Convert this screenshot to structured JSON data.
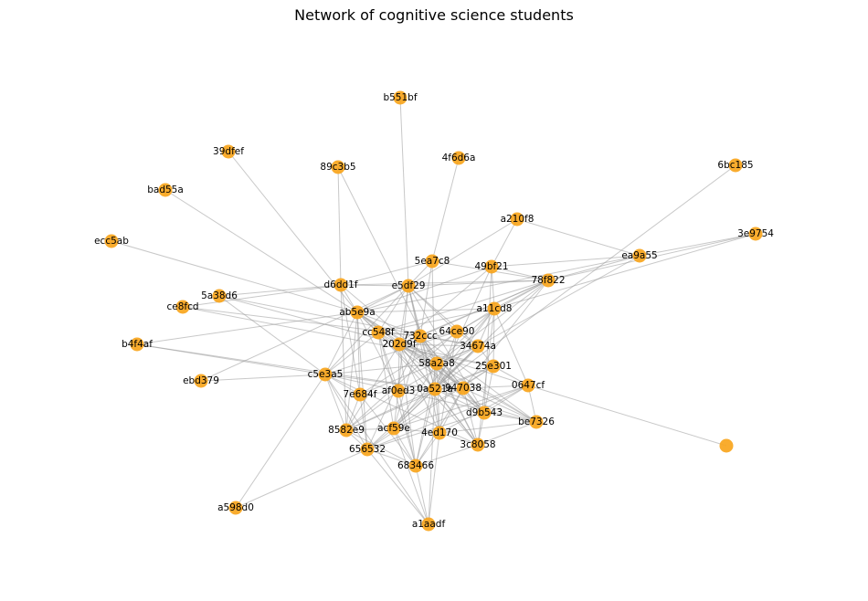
{
  "title": "Network of cognitive science students",
  "colors": {
    "node": "#f8a51c",
    "edge": "#9a9a9a",
    "label": "#000000"
  },
  "nodes": [
    {
      "id": "b551bf",
      "label": "b551bf"
    },
    {
      "id": "39dfef",
      "label": "39dfef"
    },
    {
      "id": "4f6d6a",
      "label": "4f6d6a"
    },
    {
      "id": "89c3b5",
      "label": "89c3b5"
    },
    {
      "id": "6bc185",
      "label": "6bc185"
    },
    {
      "id": "bad55a",
      "label": "bad55a"
    },
    {
      "id": "a210f8",
      "label": "a210f8"
    },
    {
      "id": "3e9754",
      "label": "3e9754"
    },
    {
      "id": "ecc5ab",
      "label": "ecc5ab"
    },
    {
      "id": "ea9a55",
      "label": "ea9a55"
    },
    {
      "id": "5ea7c8",
      "label": "5ea7c8"
    },
    {
      "id": "49bf21",
      "label": "49bf21"
    },
    {
      "id": "78f822",
      "label": "78f822"
    },
    {
      "id": "d6dd1f",
      "label": "d6dd1f"
    },
    {
      "id": "e5df29",
      "label": "e5df29"
    },
    {
      "id": "5a38d6",
      "label": "5a38d6"
    },
    {
      "id": "ce8fcd",
      "label": "ce8fcd"
    },
    {
      "id": "a11cd8",
      "label": "a11cd8"
    },
    {
      "id": "ab5e9a",
      "label": "ab5e9a"
    },
    {
      "id": "cc548f",
      "label": "cc548f"
    },
    {
      "id": "64ce90",
      "label": "64ce90"
    },
    {
      "id": "732ccc",
      "label": "732ccc"
    },
    {
      "id": "b4f4af",
      "label": "b4f4af"
    },
    {
      "id": "202d9f",
      "label": "202d9f"
    },
    {
      "id": "34674a",
      "label": "34674a"
    },
    {
      "id": "58a2a8",
      "label": "58a2a8"
    },
    {
      "id": "25e301",
      "label": "25e301"
    },
    {
      "id": "c5e3a5",
      "label": "c5e3a5"
    },
    {
      "id": "ebd379",
      "label": "ebd379"
    },
    {
      "id": "0647cf",
      "label": "0647cf"
    },
    {
      "id": "7e684f",
      "label": "7e684f"
    },
    {
      "id": "af0ed3",
      "label": "af0ed3"
    },
    {
      "id": "0a521a",
      "label": "0a521a"
    },
    {
      "id": "947038",
      "label": "947038"
    },
    {
      "id": "d9b543",
      "label": "d9b543"
    },
    {
      "id": "be7326",
      "label": "be7326"
    },
    {
      "id": "8582e9",
      "label": "8582e9"
    },
    {
      "id": "acf59e",
      "label": "acf59e"
    },
    {
      "id": "4ed170",
      "label": "4ed170"
    },
    {
      "id": "3c8058",
      "label": "3c8058"
    },
    {
      "id": "656532",
      "label": "656532"
    },
    {
      "id": "683466",
      "label": "683466"
    },
    {
      "id": "a598d0",
      "label": "a598d0"
    },
    {
      "id": "a1aadf",
      "label": "a1aadf"
    },
    {
      "id": "lone",
      "label": ""
    }
  ],
  "edges": [
    [
      "b551bf",
      "e5df29"
    ],
    [
      "39dfef",
      "ab5e9a"
    ],
    [
      "4f6d6a",
      "5ea7c8"
    ],
    [
      "89c3b5",
      "d6dd1f"
    ],
    [
      "89c3b5",
      "58a2a8"
    ],
    [
      "bad55a",
      "ab5e9a"
    ],
    [
      "ecc5ab",
      "ab5e9a"
    ],
    [
      "6bc185",
      "0a521a"
    ],
    [
      "a210f8",
      "ea9a55"
    ],
    [
      "a210f8",
      "e5df29"
    ],
    [
      "a210f8",
      "49bf21"
    ],
    [
      "3e9754",
      "ea9a55"
    ],
    [
      "3e9754",
      "78f822"
    ],
    [
      "3e9754",
      "a11cd8"
    ],
    [
      "ea9a55",
      "78f822"
    ],
    [
      "ea9a55",
      "ab5e9a"
    ],
    [
      "ea9a55",
      "34674a"
    ],
    [
      "ea9a55",
      "49bf21"
    ],
    [
      "5ea7c8",
      "e5df29"
    ],
    [
      "5ea7c8",
      "78f822"
    ],
    [
      "5ea7c8",
      "d6dd1f"
    ],
    [
      "5ea7c8",
      "732ccc"
    ],
    [
      "5ea7c8",
      "0a521a"
    ],
    [
      "49bf21",
      "78f822"
    ],
    [
      "49bf21",
      "202d9f"
    ],
    [
      "49bf21",
      "a11cd8"
    ],
    [
      "49bf21",
      "0a521a"
    ],
    [
      "49bf21",
      "d9b543"
    ],
    [
      "49bf21",
      "ab5e9a"
    ],
    [
      "78f822",
      "d6dd1f"
    ],
    [
      "78f822",
      "e5df29"
    ],
    [
      "78f822",
      "a11cd8"
    ],
    [
      "78f822",
      "202d9f"
    ],
    [
      "78f822",
      "58a2a8"
    ],
    [
      "78f822",
      "0a521a"
    ],
    [
      "78f822",
      "732ccc"
    ],
    [
      "78f822",
      "947038"
    ],
    [
      "78f822",
      "64ce90"
    ],
    [
      "78f822",
      "cc548f"
    ],
    [
      "d6dd1f",
      "e5df29"
    ],
    [
      "d6dd1f",
      "ab5e9a"
    ],
    [
      "d6dd1f",
      "5a38d6"
    ],
    [
      "d6dd1f",
      "ce8fcd"
    ],
    [
      "d6dd1f",
      "7e684f"
    ],
    [
      "d6dd1f",
      "947038"
    ],
    [
      "d6dd1f",
      "8582e9"
    ],
    [
      "e5df29",
      "ab5e9a"
    ],
    [
      "e5df29",
      "cc548f"
    ],
    [
      "e5df29",
      "732ccc"
    ],
    [
      "e5df29",
      "64ce90"
    ],
    [
      "e5df29",
      "34674a"
    ],
    [
      "e5df29",
      "202d9f"
    ],
    [
      "e5df29",
      "af0ed3"
    ],
    [
      "e5df29",
      "0a521a"
    ],
    [
      "e5df29",
      "4ed170"
    ],
    [
      "e5df29",
      "ebd379"
    ],
    [
      "e5df29",
      "c5e3a5"
    ],
    [
      "e5df29",
      "d9b543"
    ],
    [
      "5a38d6",
      "c5e3a5"
    ],
    [
      "5a38d6",
      "34674a"
    ],
    [
      "5a38d6",
      "202d9f"
    ],
    [
      "ce8fcd",
      "25e301"
    ],
    [
      "ce8fcd",
      "732ccc"
    ],
    [
      "a11cd8",
      "ab5e9a"
    ],
    [
      "a11cd8",
      "cc548f"
    ],
    [
      "a11cd8",
      "34674a"
    ],
    [
      "a11cd8",
      "58a2a8"
    ],
    [
      "a11cd8",
      "25e301"
    ],
    [
      "a11cd8",
      "0647cf"
    ],
    [
      "a11cd8",
      "acf59e"
    ],
    [
      "a11cd8",
      "3c8058"
    ],
    [
      "a11cd8",
      "0a521a"
    ],
    [
      "a11cd8",
      "7e684f"
    ],
    [
      "ab5e9a",
      "cc548f"
    ],
    [
      "ab5e9a",
      "202d9f"
    ],
    [
      "ab5e9a",
      "732ccc"
    ],
    [
      "ab5e9a",
      "c5e3a5"
    ],
    [
      "ab5e9a",
      "7e684f"
    ],
    [
      "ab5e9a",
      "8582e9"
    ],
    [
      "ab5e9a",
      "656532"
    ],
    [
      "ab5e9a",
      "58a2a8"
    ],
    [
      "ab5e9a",
      "947038"
    ],
    [
      "ab5e9a",
      "be7326"
    ],
    [
      "ab5e9a",
      "af0ed3"
    ],
    [
      "ab5e9a",
      "0a521a"
    ],
    [
      "cc548f",
      "202d9f"
    ],
    [
      "cc548f",
      "732ccc"
    ],
    [
      "cc548f",
      "c5e3a5"
    ],
    [
      "cc548f",
      "af0ed3"
    ],
    [
      "cc548f",
      "acf59e"
    ],
    [
      "cc548f",
      "3c8058"
    ],
    [
      "cc548f",
      "683466"
    ],
    [
      "cc548f",
      "d9b543"
    ],
    [
      "64ce90",
      "202d9f"
    ],
    [
      "64ce90",
      "34674a"
    ],
    [
      "64ce90",
      "0a521a"
    ],
    [
      "64ce90",
      "c5e3a5"
    ],
    [
      "64ce90",
      "8582e9"
    ],
    [
      "64ce90",
      "4ed170"
    ],
    [
      "732ccc",
      "202d9f"
    ],
    [
      "732ccc",
      "34674a"
    ],
    [
      "732ccc",
      "58a2a8"
    ],
    [
      "732ccc",
      "0a521a"
    ],
    [
      "732ccc",
      "947038"
    ],
    [
      "732ccc",
      "d9b543"
    ],
    [
      "732ccc",
      "be7326"
    ],
    [
      "732ccc",
      "3c8058"
    ],
    [
      "732ccc",
      "656532"
    ],
    [
      "732ccc",
      "acf59e"
    ],
    [
      "b4f4af",
      "ab5e9a"
    ],
    [
      "b4f4af",
      "c5e3a5"
    ],
    [
      "b4f4af",
      "0a521a"
    ],
    [
      "202d9f",
      "34674a"
    ],
    [
      "202d9f",
      "58a2a8"
    ],
    [
      "202d9f",
      "25e301"
    ],
    [
      "202d9f",
      "0647cf"
    ],
    [
      "202d9f",
      "0a521a"
    ],
    [
      "202d9f",
      "947038"
    ],
    [
      "202d9f",
      "d9b543"
    ],
    [
      "202d9f",
      "be7326"
    ],
    [
      "202d9f",
      "3c8058"
    ],
    [
      "202d9f",
      "4ed170"
    ],
    [
      "202d9f",
      "683466"
    ],
    [
      "202d9f",
      "af0ed3"
    ],
    [
      "202d9f",
      "8582e9"
    ],
    [
      "34674a",
      "58a2a8"
    ],
    [
      "34674a",
      "0a521a"
    ],
    [
      "34674a",
      "af0ed3"
    ],
    [
      "34674a",
      "acf59e"
    ],
    [
      "34674a",
      "25e301"
    ],
    [
      "34674a",
      "7e684f"
    ],
    [
      "34674a",
      "656532"
    ],
    [
      "58a2a8",
      "0a521a"
    ],
    [
      "58a2a8",
      "947038"
    ],
    [
      "58a2a8",
      "d9b543"
    ],
    [
      "58a2a8",
      "4ed170"
    ],
    [
      "58a2a8",
      "3c8058"
    ],
    [
      "58a2a8",
      "683466"
    ],
    [
      "58a2a8",
      "acf59e"
    ],
    [
      "58a2a8",
      "c5e3a5"
    ],
    [
      "25e301",
      "0a521a"
    ],
    [
      "25e301",
      "d9b543"
    ],
    [
      "25e301",
      "0647cf"
    ],
    [
      "25e301",
      "acf59e"
    ],
    [
      "25e301",
      "656532"
    ],
    [
      "25e301",
      "8582e9"
    ],
    [
      "c5e3a5",
      "7e684f"
    ],
    [
      "c5e3a5",
      "8582e9"
    ],
    [
      "c5e3a5",
      "a598d0"
    ],
    [
      "c5e3a5",
      "656532"
    ],
    [
      "c5e3a5",
      "a1aadf"
    ],
    [
      "c5e3a5",
      "0a521a"
    ],
    [
      "c5e3a5",
      "3c8058"
    ],
    [
      "c5e3a5",
      "be7326"
    ],
    [
      "c5e3a5",
      "ebd379"
    ],
    [
      "0647cf",
      "947038"
    ],
    [
      "0647cf",
      "d9b543"
    ],
    [
      "0647cf",
      "be7326"
    ],
    [
      "0647cf",
      "lone"
    ],
    [
      "0647cf",
      "4ed170"
    ],
    [
      "0647cf",
      "656532"
    ],
    [
      "0647cf",
      "acf59e"
    ],
    [
      "7e684f",
      "af0ed3"
    ],
    [
      "7e684f",
      "8582e9"
    ],
    [
      "7e684f",
      "656532"
    ],
    [
      "7e684f",
      "683466"
    ],
    [
      "af0ed3",
      "0a521a"
    ],
    [
      "af0ed3",
      "947038"
    ],
    [
      "af0ed3",
      "acf59e"
    ],
    [
      "af0ed3",
      "683466"
    ],
    [
      "af0ed3",
      "8582e9"
    ],
    [
      "0a521a",
      "947038"
    ],
    [
      "0a521a",
      "d9b543"
    ],
    [
      "0a521a",
      "be7326"
    ],
    [
      "0a521a",
      "3c8058"
    ],
    [
      "0a521a",
      "4ed170"
    ],
    [
      "0a521a",
      "acf59e"
    ],
    [
      "0a521a",
      "683466"
    ],
    [
      "0a521a",
      "8582e9"
    ],
    [
      "0a521a",
      "a1aadf"
    ],
    [
      "947038",
      "d9b543"
    ],
    [
      "947038",
      "be7326"
    ],
    [
      "947038",
      "3c8058"
    ],
    [
      "947038",
      "4ed170"
    ],
    [
      "947038",
      "683466"
    ],
    [
      "d9b543",
      "be7326"
    ],
    [
      "d9b543",
      "3c8058"
    ],
    [
      "d9b543",
      "656532"
    ],
    [
      "be7326",
      "3c8058"
    ],
    [
      "be7326",
      "4ed170"
    ],
    [
      "8582e9",
      "656532"
    ],
    [
      "8582e9",
      "acf59e"
    ],
    [
      "8582e9",
      "683466"
    ],
    [
      "acf59e",
      "656532"
    ],
    [
      "acf59e",
      "683466"
    ],
    [
      "acf59e",
      "4ed170"
    ],
    [
      "acf59e",
      "a1aadf"
    ],
    [
      "4ed170",
      "3c8058"
    ],
    [
      "4ed170",
      "683466"
    ],
    [
      "4ed170",
      "a1aadf"
    ],
    [
      "656532",
      "683466"
    ],
    [
      "656532",
      "a598d0"
    ],
    [
      "656532",
      "a1aadf"
    ],
    [
      "683466",
      "a1aadf"
    ],
    [
      "683466",
      "3c8058"
    ]
  ]
}
